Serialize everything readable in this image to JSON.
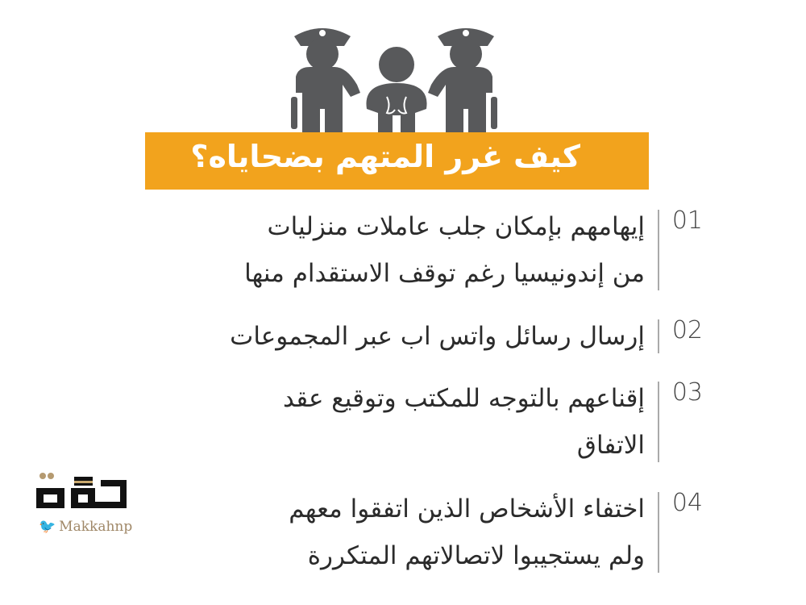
{
  "title": "كيف غرر المتهم بضحاياه؟",
  "colors": {
    "banner": "#f2a31d",
    "icon": "#58595b",
    "text": "#2b2b2b"
  },
  "items": [
    {
      "number": "01",
      "lines": [
        "إيهامهم بإمكان جلب عاملات منزليات",
        "من إندونيسيا رغم توقف الاستقدام منها"
      ]
    },
    {
      "number": "02",
      "lines": [
        "إرسال رسائل واتس اب عبر المجموعات"
      ]
    },
    {
      "number": "03",
      "lines": [
        "إقناعهم بالتوجه للمكتب وتوقيع عقد",
        "الاتفاق"
      ]
    },
    {
      "number": "04",
      "lines": [
        "اختفاء الأشخاص الذين اتفقوا معهم",
        "ولم يستجيبوا لاتصالاتهم المتكررة"
      ]
    }
  ],
  "logo": {
    "text": "مكة",
    "handle": "Makkahnp",
    "icon": "twitter-bird-icon"
  }
}
